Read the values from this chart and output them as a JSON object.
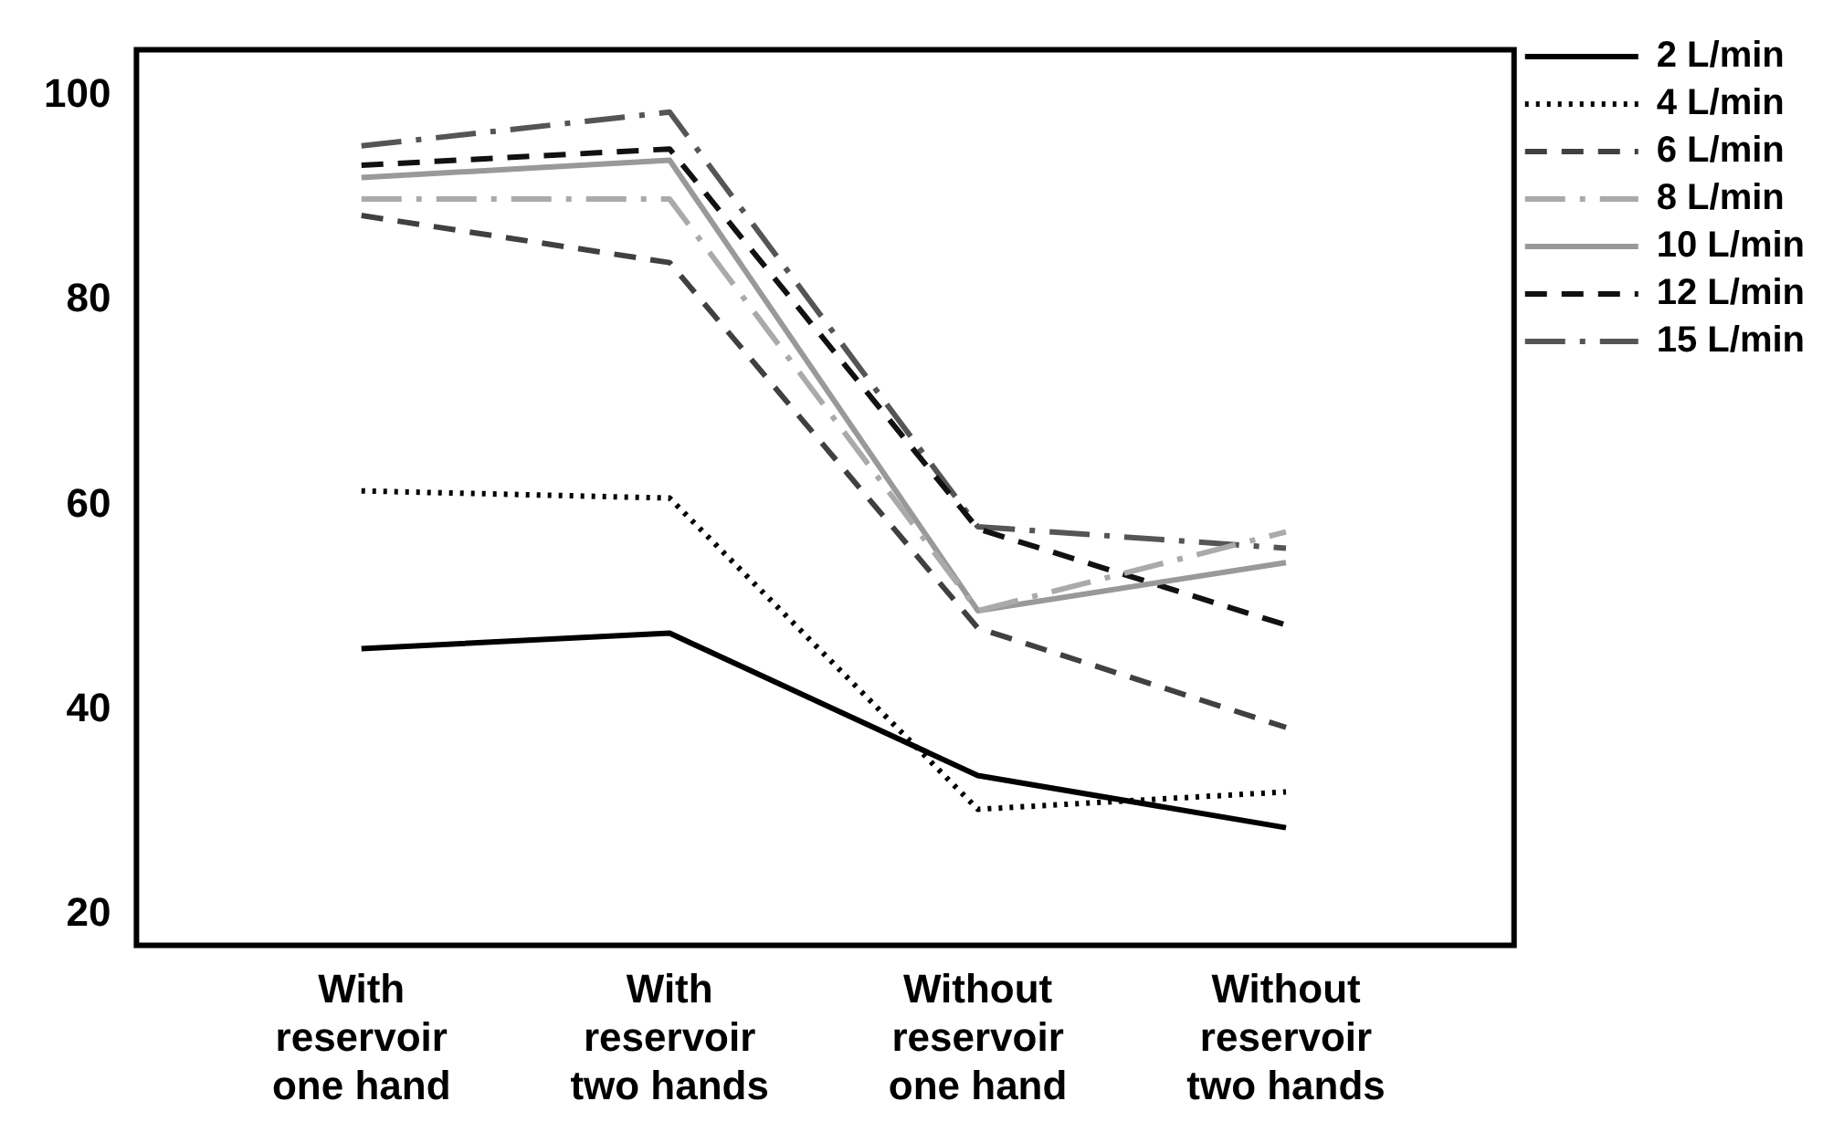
{
  "chart_data": {
    "type": "line",
    "categories": [
      "With reservoir one hand",
      "With reservoir two hands",
      "Without reservoir one hand",
      "Without reservoir two hands"
    ],
    "ylim": [
      17,
      104.5
    ],
    "yticks": [
      20,
      40,
      60,
      80,
      100
    ],
    "grid": false,
    "legend": "right",
    "marker": "none",
    "series": [
      {
        "name": "2 L/min",
        "color": "#000000",
        "line_style": "solid",
        "values": [
          46,
          47.5,
          33.6,
          28.5
        ]
      },
      {
        "name": "4 L/min",
        "color": "#000000",
        "line_style": "dotted",
        "values": [
          61.4,
          60.7,
          30.3,
          32
        ]
      },
      {
        "name": "6 L/min",
        "color": "#404040",
        "line_style": "dashed",
        "values": [
          88.3,
          83.7,
          48,
          38.3
        ]
      },
      {
        "name": "8 L/min",
        "color": "#aaaaaa",
        "line_style": "dashdot",
        "values": [
          89.9,
          89.9,
          49.7,
          57.4
        ]
      },
      {
        "name": "10 L/min",
        "color": "#999999",
        "line_style": "solid",
        "values": [
          92,
          93.7,
          49.7,
          54.4
        ]
      },
      {
        "name": "12 L/min",
        "color": "#111111",
        "line_style": "dashed",
        "values": [
          93.2,
          94.8,
          57.7,
          48.3
        ]
      },
      {
        "name": "15 L/min",
        "color": "#555555",
        "line_style": "dashdot",
        "values": [
          95.1,
          98.4,
          57.9,
          55.8
        ]
      }
    ]
  }
}
